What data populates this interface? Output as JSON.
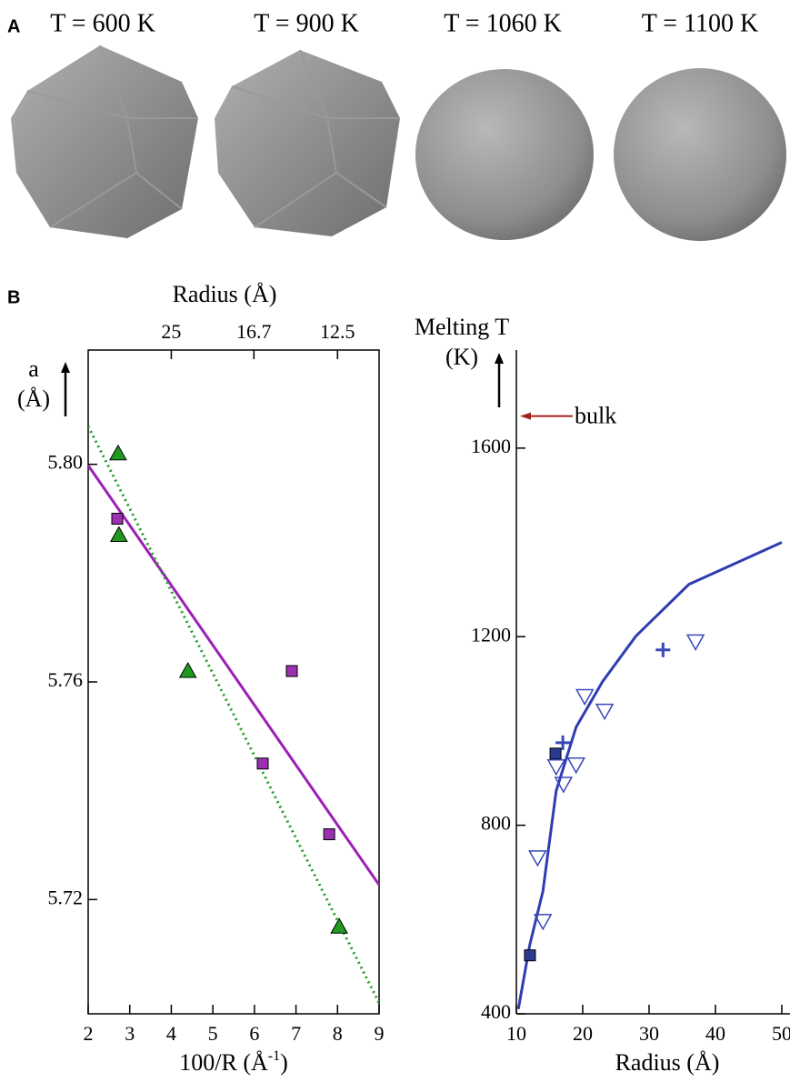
{
  "panel_a": {
    "label": "A",
    "temperatures": [
      "T = 600 K",
      "T = 900 K",
      "T = 1060 K",
      "T = 1100 K"
    ]
  },
  "panel_b_label": "B",
  "chart_data": [
    {
      "type": "scatter",
      "xlabel": {
        "text": "100/R (Å",
        "sup": "-1",
        "end": ")"
      },
      "ylabel": [
        "a",
        "(Å)"
      ],
      "x2label": "Radius (Å)",
      "xlim": [
        2,
        9
      ],
      "xticks": [
        2,
        3,
        4,
        5,
        6,
        7,
        8,
        9
      ],
      "x2ticks": [
        25,
        16.7,
        12.5
      ],
      "ylim": [
        5.699,
        5.821
      ],
      "yticks": [
        5.72,
        5.76,
        {
          "value": 5.8,
          "label": "5.80"
        }
      ],
      "series": [
        {
          "marker": "square",
          "color": "#9b30b0",
          "x": [
            2.7,
            6.2,
            6.9,
            7.8
          ],
          "values": [
            5.79,
            5.745,
            5.762,
            5.732
          ]
        },
        {
          "marker": "triangle",
          "color": "#1f9a1f",
          "x": [
            2.72,
            2.74,
            4.4,
            8.04
          ],
          "values": [
            5.802,
            5.787,
            5.762,
            5.715
          ]
        }
      ],
      "fits": [
        {
          "color": "#9b1fb8",
          "style": "solid",
          "x": [
            2,
            9
          ],
          "values": [
            5.7998,
            5.7227
          ]
        },
        {
          "color": "#1f9a1f",
          "style": "dotted",
          "x": [
            2,
            9
          ],
          "values": [
            5.807,
            5.701
          ]
        }
      ]
    },
    {
      "type": "scatter",
      "xlabel": "Radius (Å)",
      "ylabel": [
        "Melting T",
        "(K)"
      ],
      "xlim": [
        10,
        50
      ],
      "xticks": [
        10,
        20,
        30,
        40,
        50
      ],
      "ylim": [
        400,
        1808
      ],
      "yticks": [
        400,
        800,
        1200,
        1600
      ],
      "series": [
        {
          "marker": "square",
          "color": "#2a3b8f",
          "x": [
            12.05,
            15.9
          ],
          "values": [
            524,
            952
          ]
        },
        {
          "marker": "plus",
          "color": "#3848b8",
          "x": [
            17.0,
            32.1
          ],
          "values": [
            975,
            1172
          ]
        },
        {
          "marker": "triangle-down",
          "color": "#3848b8",
          "x": [
            14.0,
            13.2,
            16.0,
            17.1,
            19.0,
            20.3,
            23.3,
            37.0
          ],
          "values": [
            597,
            732,
            925,
            888,
            929,
            1074,
            1043,
            1190
          ]
        }
      ],
      "fits": [
        {
          "color": "#2f3db0",
          "style": "solid",
          "x": [
            10.3,
            12,
            14,
            16,
            19,
            23,
            28,
            36,
            50
          ],
          "values": [
            410,
            545,
            660,
            873,
            1008,
            1105,
            1201,
            1311,
            1400
          ]
        }
      ],
      "annotation": {
        "text": "bulk",
        "value": 1668,
        "color": "#a0201a"
      }
    }
  ]
}
